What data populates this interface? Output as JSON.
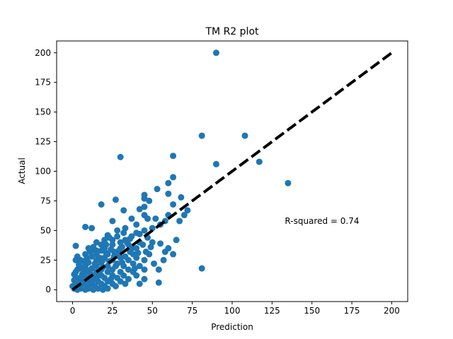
{
  "chart_data": {
    "type": "scatter",
    "title": "TM R2 plot",
    "xlabel": "Prediction",
    "ylabel": "Actual",
    "xlim": [
      -10,
      210
    ],
    "ylim": [
      -10,
      210
    ],
    "xticks": [
      0,
      25,
      50,
      75,
      100,
      125,
      150,
      175,
      200
    ],
    "yticks": [
      0,
      25,
      50,
      75,
      100,
      125,
      150,
      175,
      200
    ],
    "grid": false,
    "point_color": "#1f77b4",
    "reference_line": {
      "x": [
        0,
        200
      ],
      "y": [
        0,
        200
      ],
      "style": "dashed",
      "color": "#000000"
    },
    "annotation": {
      "text": "R-squared = 0.74",
      "x": 133,
      "y": 58
    },
    "points": [
      [
        90,
        200
      ],
      [
        108,
        130
      ],
      [
        81,
        130
      ],
      [
        63,
        113
      ],
      [
        30,
        112
      ],
      [
        117,
        108
      ],
      [
        90,
        106
      ],
      [
        63,
        95
      ],
      [
        60,
        90
      ],
      [
        135,
        90
      ],
      [
        45,
        80
      ],
      [
        45,
        77
      ],
      [
        60,
        81
      ],
      [
        53,
        85
      ],
      [
        48,
        75
      ],
      [
        68,
        78
      ],
      [
        27,
        76
      ],
      [
        63,
        72
      ],
      [
        18,
        72
      ],
      [
        45,
        70
      ],
      [
        42,
        68
      ],
      [
        72,
        67
      ],
      [
        32,
        67
      ],
      [
        70,
        63
      ],
      [
        45,
        63
      ],
      [
        60,
        63
      ],
      [
        37,
        60
      ],
      [
        52,
        60
      ],
      [
        47,
        60
      ],
      [
        67,
        58
      ],
      [
        58,
        58
      ],
      [
        25,
        58
      ],
      [
        40,
        55
      ],
      [
        55,
        55
      ],
      [
        8,
        53
      ],
      [
        12,
        52
      ],
      [
        33,
        52
      ],
      [
        50,
        52
      ],
      [
        28,
        50
      ],
      [
        45,
        50
      ],
      [
        40,
        48
      ],
      [
        32,
        48
      ],
      [
        22,
        46
      ],
      [
        28,
        45
      ],
      [
        37,
        45
      ],
      [
        47,
        44
      ],
      [
        20,
        42
      ],
      [
        25,
        42
      ],
      [
        33,
        42
      ],
      [
        15,
        40
      ],
      [
        30,
        40
      ],
      [
        42,
        40
      ],
      [
        50,
        40
      ],
      [
        18,
        38
      ],
      [
        25,
        38
      ],
      [
        35,
        38
      ],
      [
        55,
        39
      ],
      [
        2,
        37
      ],
      [
        10,
        35
      ],
      [
        20,
        35
      ],
      [
        30,
        35
      ],
      [
        40,
        35
      ],
      [
        12,
        33
      ],
      [
        18,
        33
      ],
      [
        26,
        32
      ],
      [
        36,
        32
      ],
      [
        46,
        32
      ],
      [
        58,
        32
      ],
      [
        63,
        30
      ],
      [
        8,
        30
      ],
      [
        15,
        30
      ],
      [
        22,
        30
      ],
      [
        28,
        30
      ],
      [
        38,
        30
      ],
      [
        48,
        30
      ],
      [
        3,
        28
      ],
      [
        12,
        28
      ],
      [
        20,
        27
      ],
      [
        30,
        27
      ],
      [
        40,
        27
      ],
      [
        5,
        25
      ],
      [
        15,
        25
      ],
      [
        25,
        25
      ],
      [
        35,
        25
      ],
      [
        45,
        25
      ],
      [
        2,
        25
      ],
      [
        10,
        23
      ],
      [
        18,
        23
      ],
      [
        28,
        22
      ],
      [
        38,
        22
      ],
      [
        8,
        20
      ],
      [
        15,
        20
      ],
      [
        22,
        20
      ],
      [
        32,
        20
      ],
      [
        42,
        20
      ],
      [
        81,
        18
      ],
      [
        5,
        18
      ],
      [
        12,
        18
      ],
      [
        18,
        17
      ],
      [
        25,
        17
      ],
      [
        35,
        17
      ],
      [
        45,
        17
      ],
      [
        54,
        17
      ],
      [
        2,
        15
      ],
      [
        8,
        15
      ],
      [
        15,
        15
      ],
      [
        22,
        15
      ],
      [
        30,
        15
      ],
      [
        38,
        15
      ],
      [
        1,
        13
      ],
      [
        6,
        13
      ],
      [
        12,
        12
      ],
      [
        18,
        12
      ],
      [
        25,
        12
      ],
      [
        32,
        12
      ],
      [
        40,
        12
      ],
      [
        3,
        10
      ],
      [
        9,
        10
      ],
      [
        15,
        10
      ],
      [
        20,
        10
      ],
      [
        28,
        10
      ],
      [
        35,
        9
      ],
      [
        45,
        9
      ],
      [
        1,
        8
      ],
      [
        5,
        8
      ],
      [
        10,
        8
      ],
      [
        16,
        7
      ],
      [
        22,
        7
      ],
      [
        30,
        7
      ],
      [
        42,
        5
      ],
      [
        54,
        6
      ],
      [
        2,
        5
      ],
      [
        7,
        5
      ],
      [
        12,
        5
      ],
      [
        18,
        5
      ],
      [
        25,
        5
      ],
      [
        33,
        5
      ],
      [
        0,
        3
      ],
      [
        4,
        3
      ],
      [
        9,
        3
      ],
      [
        14,
        3
      ],
      [
        20,
        3
      ],
      [
        27,
        3
      ],
      [
        1,
        1
      ],
      [
        5,
        1
      ],
      [
        10,
        1
      ],
      [
        16,
        1
      ],
      [
        22,
        1
      ],
      [
        3,
        0
      ],
      [
        8,
        0
      ],
      [
        13,
        0
      ],
      [
        19,
        0
      ],
      [
        6,
        10
      ],
      [
        11,
        14
      ],
      [
        14,
        22
      ],
      [
        17,
        27
      ],
      [
        21,
        31
      ],
      [
        24,
        34
      ],
      [
        7,
        19
      ],
      [
        4,
        21
      ],
      [
        19,
        19
      ],
      [
        23,
        24
      ],
      [
        26,
        28
      ],
      [
        29,
        33
      ],
      [
        31,
        36
      ],
      [
        34,
        40
      ],
      [
        10,
        16
      ],
      [
        13,
        8
      ],
      [
        16,
        13
      ],
      [
        19,
        25
      ],
      [
        9,
        27
      ],
      [
        6,
        6
      ],
      [
        3,
        17
      ],
      [
        27,
        20
      ],
      [
        36,
        43
      ],
      [
        42,
        47
      ],
      [
        24,
        9
      ],
      [
        31,
        23
      ],
      [
        39,
        18
      ],
      [
        44,
        38
      ],
      [
        49,
        36
      ],
      [
        51,
        22
      ],
      [
        57,
        25
      ],
      [
        60,
        35
      ],
      [
        65,
        42
      ],
      [
        13,
        36
      ],
      [
        11,
        32
      ],
      [
        7,
        24
      ],
      [
        15,
        33
      ],
      [
        21,
        38
      ],
      [
        23,
        44
      ],
      [
        33,
        28
      ],
      [
        37,
        35
      ],
      [
        41,
        31
      ]
    ]
  }
}
